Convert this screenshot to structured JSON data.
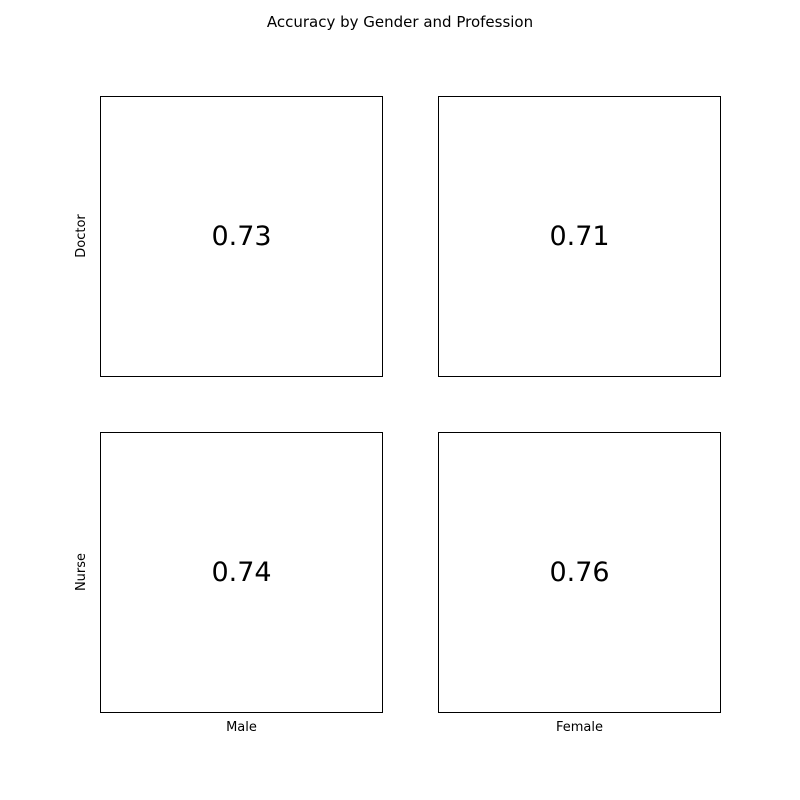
{
  "chart_data": {
    "type": "table",
    "title": "Accuracy by Gender and Profession",
    "columns": [
      "Male",
      "Female"
    ],
    "rows": [
      "Doctor",
      "Nurse"
    ],
    "values": [
      [
        0.73,
        0.71
      ],
      [
        0.74,
        0.76
      ]
    ],
    "cells": [
      {
        "row": "Doctor",
        "column": "Male",
        "label": "0.73"
      },
      {
        "row": "Doctor",
        "column": "Female",
        "label": "0.71"
      },
      {
        "row": "Nurse",
        "column": "Male",
        "label": "0.74"
      },
      {
        "row": "Nurse",
        "column": "Female",
        "label": "0.76"
      }
    ],
    "grid": false,
    "legend": false
  }
}
